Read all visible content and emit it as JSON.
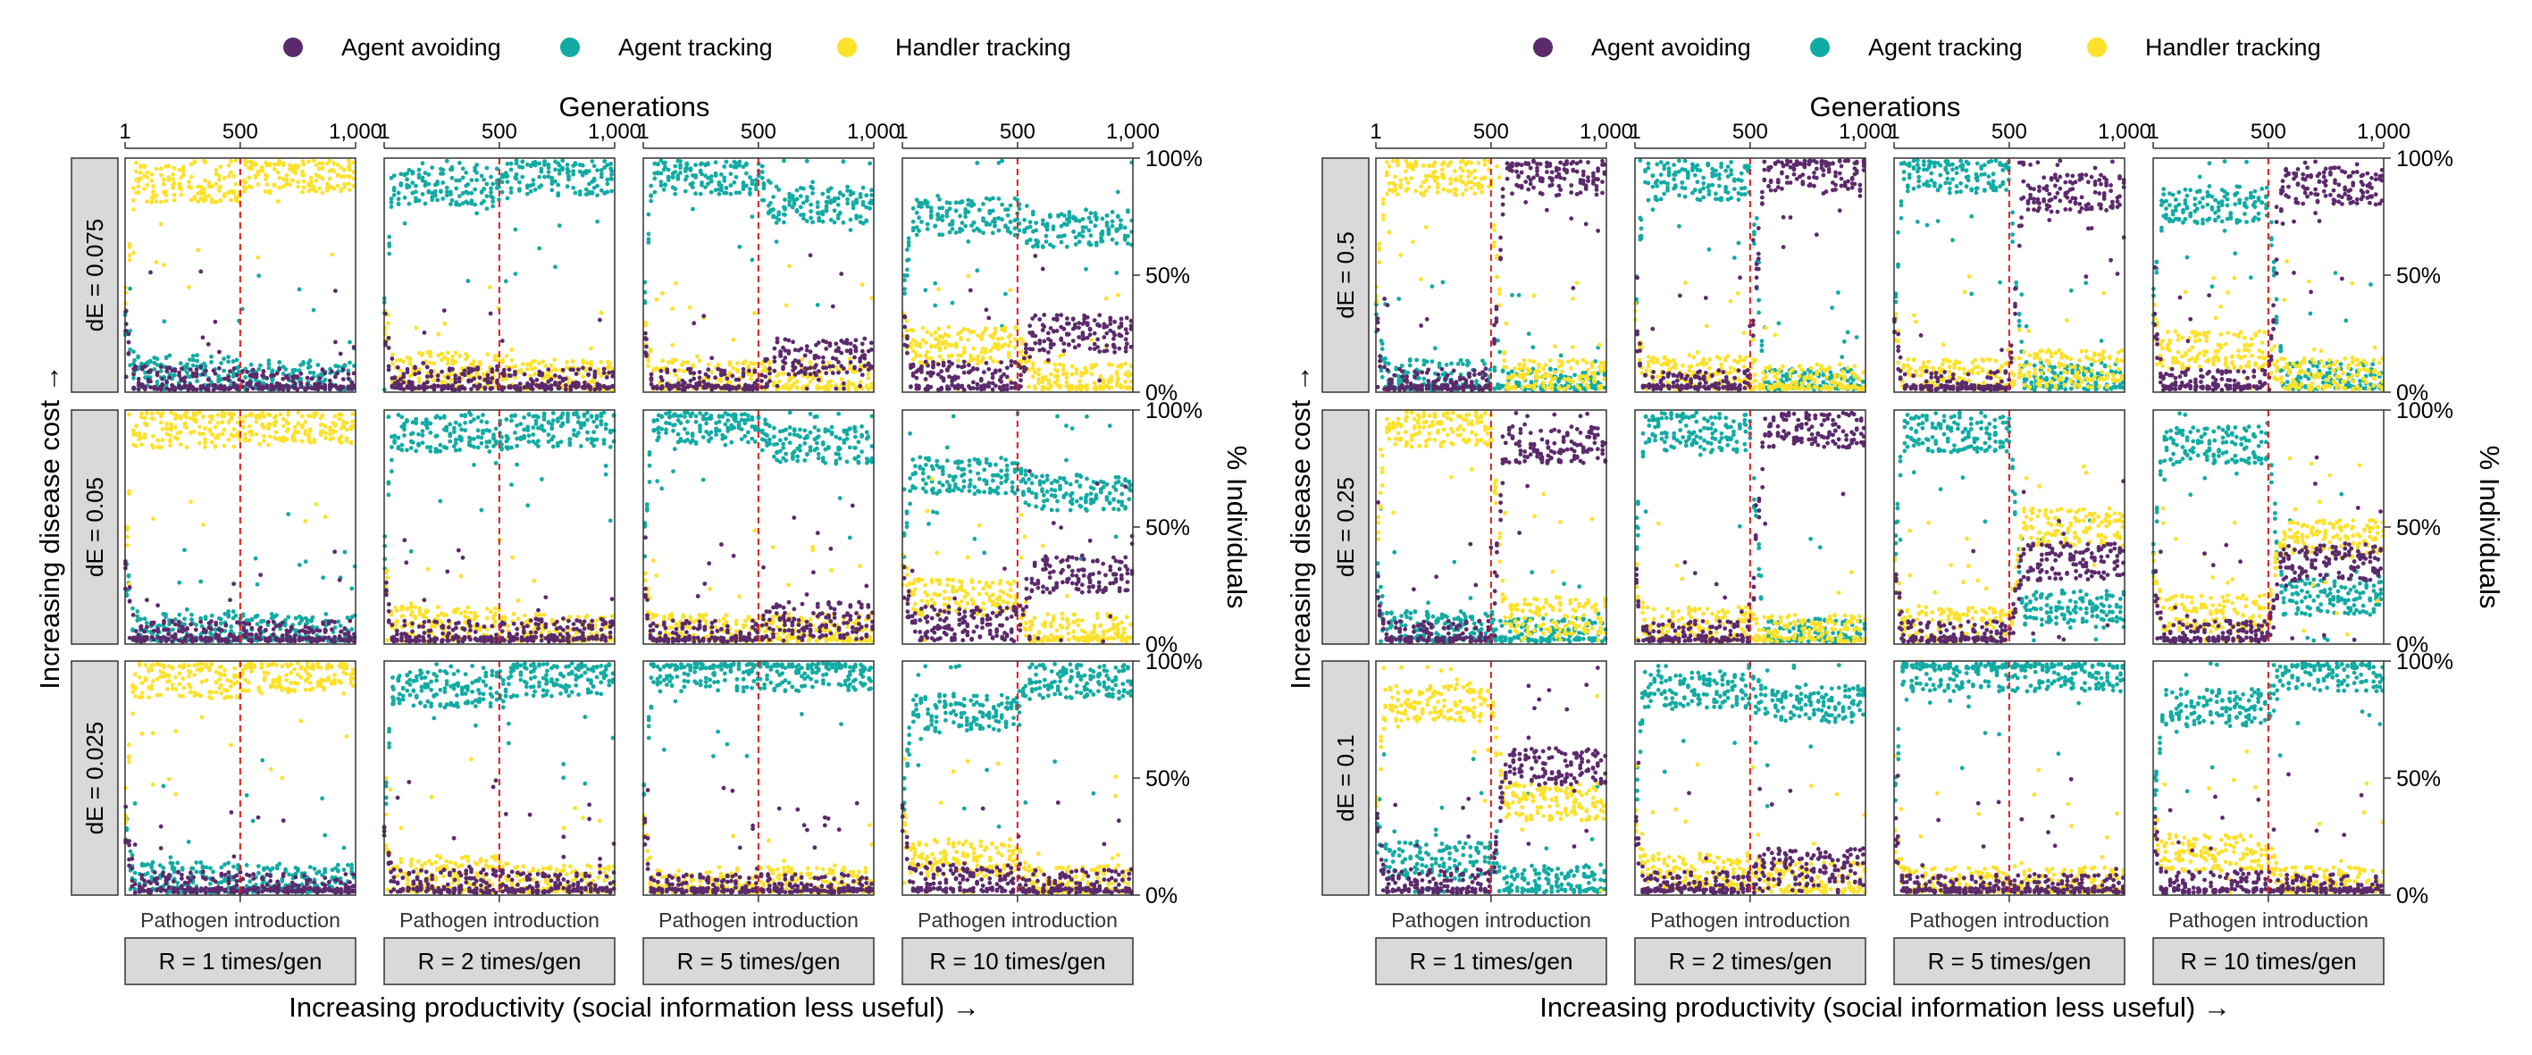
{
  "figure": {
    "legend": [
      {
        "name": "Agent avoiding",
        "color": "#5b2a6b"
      },
      {
        "name": "Agent tracking",
        "color": "#12aba3"
      },
      {
        "name": "Handler tracking",
        "color": "#fde12b"
      }
    ],
    "pathogen_label": "Pathogen introduction"
  },
  "chart_data": [
    {
      "type": "scatter",
      "panel": "left",
      "xlabel": "Generations",
      "ylabel": "% Individuals",
      "row_axis_label": "Increasing disease cost →",
      "col_axis_label": "Increasing productivity (social information less useful) →",
      "xlim": [
        1,
        1000
      ],
      "ylim": [
        0,
        100
      ],
      "x_ticks": [
        "1",
        "500",
        "1,000"
      ],
      "y_ticks": [
        "0%",
        "50%",
        "100%"
      ],
      "pathogen_introduction_generation": 500,
      "rows": [
        "dE = 0.075",
        "dE = 0.05",
        "dE = 0.025"
      ],
      "columns": [
        "R = 1 times/gen",
        "R = 2 times/gen",
        "R = 5 times/gen",
        "R = 10 times/gen"
      ],
      "series": [
        "Agent avoiding",
        "Agent tracking",
        "Handler tracking"
      ],
      "facets": [
        {
          "row": 0,
          "col": 0,
          "pre": {
            "Agent avoiding": 3,
            "Agent tracking": 8,
            "Handler tracking": 89
          },
          "post": {
            "Agent avoiding": 2,
            "Agent tracking": 5,
            "Handler tracking": 93
          }
        },
        {
          "row": 0,
          "col": 1,
          "pre": {
            "Agent avoiding": 3,
            "Agent tracking": 88,
            "Handler tracking": 9
          },
          "post": {
            "Agent avoiding": 2,
            "Agent tracking": 92,
            "Handler tracking": 6
          }
        },
        {
          "row": 0,
          "col": 2,
          "pre": {
            "Agent avoiding": 2,
            "Agent tracking": 92,
            "Handler tracking": 6
          },
          "post": {
            "Agent avoiding": 15,
            "Agent tracking": 80,
            "Handler tracking": 5
          }
        },
        {
          "row": 0,
          "col": 3,
          "pre": {
            "Agent avoiding": 5,
            "Agent tracking": 75,
            "Handler tracking": 20
          },
          "post": {
            "Agent avoiding": 25,
            "Agent tracking": 70,
            "Handler tracking": 5
          }
        },
        {
          "row": 1,
          "col": 0,
          "pre": {
            "Agent avoiding": 2,
            "Agent tracking": 6,
            "Handler tracking": 92
          },
          "post": {
            "Agent avoiding": 2,
            "Agent tracking": 5,
            "Handler tracking": 93
          }
        },
        {
          "row": 1,
          "col": 1,
          "pre": {
            "Agent avoiding": 2,
            "Agent tracking": 90,
            "Handler tracking": 8
          },
          "post": {
            "Agent avoiding": 3,
            "Agent tracking": 92,
            "Handler tracking": 5
          }
        },
        {
          "row": 1,
          "col": 2,
          "pre": {
            "Agent avoiding": 2,
            "Agent tracking": 93,
            "Handler tracking": 5
          },
          "post": {
            "Agent avoiding": 10,
            "Agent tracking": 85,
            "Handler tracking": 5
          }
        },
        {
          "row": 1,
          "col": 3,
          "pre": {
            "Agent avoiding": 8,
            "Agent tracking": 72,
            "Handler tracking": 20
          },
          "post": {
            "Agent avoiding": 30,
            "Agent tracking": 65,
            "Handler tracking": 5
          }
        },
        {
          "row": 2,
          "col": 0,
          "pre": {
            "Agent avoiding": 2,
            "Agent tracking": 6,
            "Handler tracking": 92
          },
          "post": {
            "Agent avoiding": 1,
            "Agent tracking": 5,
            "Handler tracking": 94
          }
        },
        {
          "row": 2,
          "col": 1,
          "pre": {
            "Agent avoiding": 3,
            "Agent tracking": 88,
            "Handler tracking": 9
          },
          "post": {
            "Agent avoiding": 2,
            "Agent tracking": 93,
            "Handler tracking": 5
          }
        },
        {
          "row": 2,
          "col": 2,
          "pre": {
            "Agent avoiding": 1,
            "Agent tracking": 95,
            "Handler tracking": 4
          },
          "post": {
            "Agent avoiding": 1,
            "Agent tracking": 95,
            "Handler tracking": 4
          }
        },
        {
          "row": 2,
          "col": 3,
          "pre": {
            "Agent avoiding": 6,
            "Agent tracking": 78,
            "Handler tracking": 16
          },
          "post": {
            "Agent avoiding": 3,
            "Agent tracking": 92,
            "Handler tracking": 5
          }
        }
      ]
    },
    {
      "type": "scatter",
      "panel": "right",
      "xlabel": "Generations",
      "ylabel": "% Individuals",
      "row_axis_label": "Increasing disease cost →",
      "col_axis_label": "Increasing productivity (social information less useful) →",
      "xlim": [
        1,
        1000
      ],
      "ylim": [
        0,
        100
      ],
      "x_ticks": [
        "1",
        "500",
        "1,000"
      ],
      "y_ticks": [
        "0%",
        "50%",
        "100%"
      ],
      "pathogen_introduction_generation": 500,
      "rows": [
        "dE = 0.5",
        "dE = 0.25",
        "dE = 0.1"
      ],
      "columns": [
        "R = 1 times/gen",
        "R = 2 times/gen",
        "R = 5 times/gen",
        "R = 10 times/gen"
      ],
      "series": [
        "Agent avoiding",
        "Agent tracking",
        "Handler tracking"
      ],
      "facets": [
        {
          "row": 0,
          "col": 0,
          "pre": {
            "Agent avoiding": 2,
            "Agent tracking": 6,
            "Handler tracking": 92
          },
          "post": {
            "Agent avoiding": 92,
            "Agent tracking": 2,
            "Handler tracking": 6
          }
        },
        {
          "row": 0,
          "col": 1,
          "pre": {
            "Agent avoiding": 2,
            "Agent tracking": 90,
            "Handler tracking": 8
          },
          "post": {
            "Agent avoiding": 94,
            "Agent tracking": 2,
            "Handler tracking": 4
          }
        },
        {
          "row": 0,
          "col": 2,
          "pre": {
            "Agent avoiding": 1,
            "Agent tracking": 93,
            "Handler tracking": 6
          },
          "post": {
            "Agent avoiding": 85,
            "Agent tracking": 5,
            "Handler tracking": 10
          }
        },
        {
          "row": 0,
          "col": 3,
          "pre": {
            "Agent avoiding": 2,
            "Agent tracking": 80,
            "Handler tracking": 18
          },
          "post": {
            "Agent avoiding": 88,
            "Agent tracking": 5,
            "Handler tracking": 7
          }
        },
        {
          "row": 1,
          "col": 0,
          "pre": {
            "Agent avoiding": 2,
            "Agent tracking": 6,
            "Handler tracking": 92
          },
          "post": {
            "Agent avoiding": 85,
            "Agent tracking": 3,
            "Handler tracking": 12
          }
        },
        {
          "row": 1,
          "col": 1,
          "pre": {
            "Agent avoiding": 2,
            "Agent tracking": 90,
            "Handler tracking": 8
          },
          "post": {
            "Agent avoiding": 92,
            "Agent tracking": 3,
            "Handler tracking": 5
          }
        },
        {
          "row": 1,
          "col": 2,
          "pre": {
            "Agent avoiding": 2,
            "Agent tracking": 90,
            "Handler tracking": 8
          },
          "post": {
            "Agent avoiding": 35,
            "Agent tracking": 15,
            "Handler tracking": 50
          }
        },
        {
          "row": 1,
          "col": 3,
          "pre": {
            "Agent avoiding": 2,
            "Agent tracking": 85,
            "Handler tracking": 13
          },
          "post": {
            "Agent avoiding": 35,
            "Agent tracking": 20,
            "Handler tracking": 45
          }
        },
        {
          "row": 2,
          "col": 0,
          "pre": {
            "Agent avoiding": 3,
            "Agent tracking": 15,
            "Handler tracking": 82
          },
          "post": {
            "Agent avoiding": 55,
            "Agent tracking": 5,
            "Handler tracking": 40
          }
        },
        {
          "row": 2,
          "col": 1,
          "pre": {
            "Agent avoiding": 2,
            "Agent tracking": 88,
            "Handler tracking": 10
          },
          "post": {
            "Agent avoiding": 12,
            "Agent tracking": 82,
            "Handler tracking": 6
          }
        },
        {
          "row": 2,
          "col": 2,
          "pre": {
            "Agent avoiding": 1,
            "Agent tracking": 95,
            "Handler tracking": 4
          },
          "post": {
            "Agent avoiding": 1,
            "Agent tracking": 95,
            "Handler tracking": 4
          }
        },
        {
          "row": 2,
          "col": 3,
          "pre": {
            "Agent avoiding": 2,
            "Agent tracking": 80,
            "Handler tracking": 18
          },
          "post": {
            "Agent avoiding": 1,
            "Agent tracking": 95,
            "Handler tracking": 4
          }
        }
      ]
    }
  ]
}
